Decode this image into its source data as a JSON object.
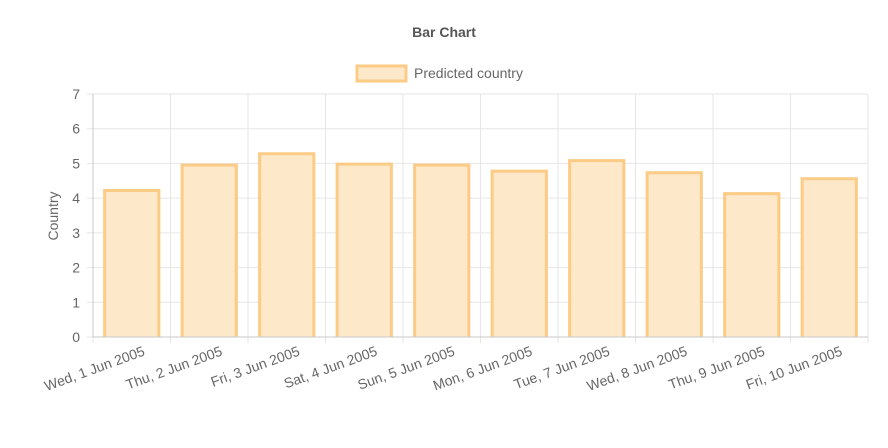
{
  "chart_data": {
    "type": "bar",
    "title": "Bar Chart",
    "ylabel": "Country",
    "xlabel": "",
    "categories": [
      "Wed, 1 Jun 2005",
      "Thu, 2 Jun 2005",
      "Fri, 3 Jun 2005",
      "Sat, 4 Jun 2005",
      "Sun, 5 Jun 2005",
      "Mon, 6 Jun 2005",
      "Tue, 7 Jun 2005",
      "Wed, 8 Jun 2005",
      "Thu, 9 Jun 2005",
      "Fri, 10 Jun 2005"
    ],
    "series": [
      {
        "name": "Predicted country",
        "values": [
          4.22,
          4.95,
          5.28,
          4.98,
          4.95,
          4.78,
          5.08,
          4.73,
          4.13,
          4.56
        ],
        "fill_color": "#fde8c9",
        "border_color": "#fccb85"
      }
    ],
    "ylim": [
      0,
      7
    ],
    "yticks": [
      0,
      1,
      2,
      3,
      4,
      5,
      6,
      7
    ],
    "grid": true,
    "legend_position": "top-center"
  },
  "colors": {
    "grid": "#e6e6e6",
    "axis": "#c8c8c8",
    "text": "#666666",
    "title": "#555555"
  }
}
